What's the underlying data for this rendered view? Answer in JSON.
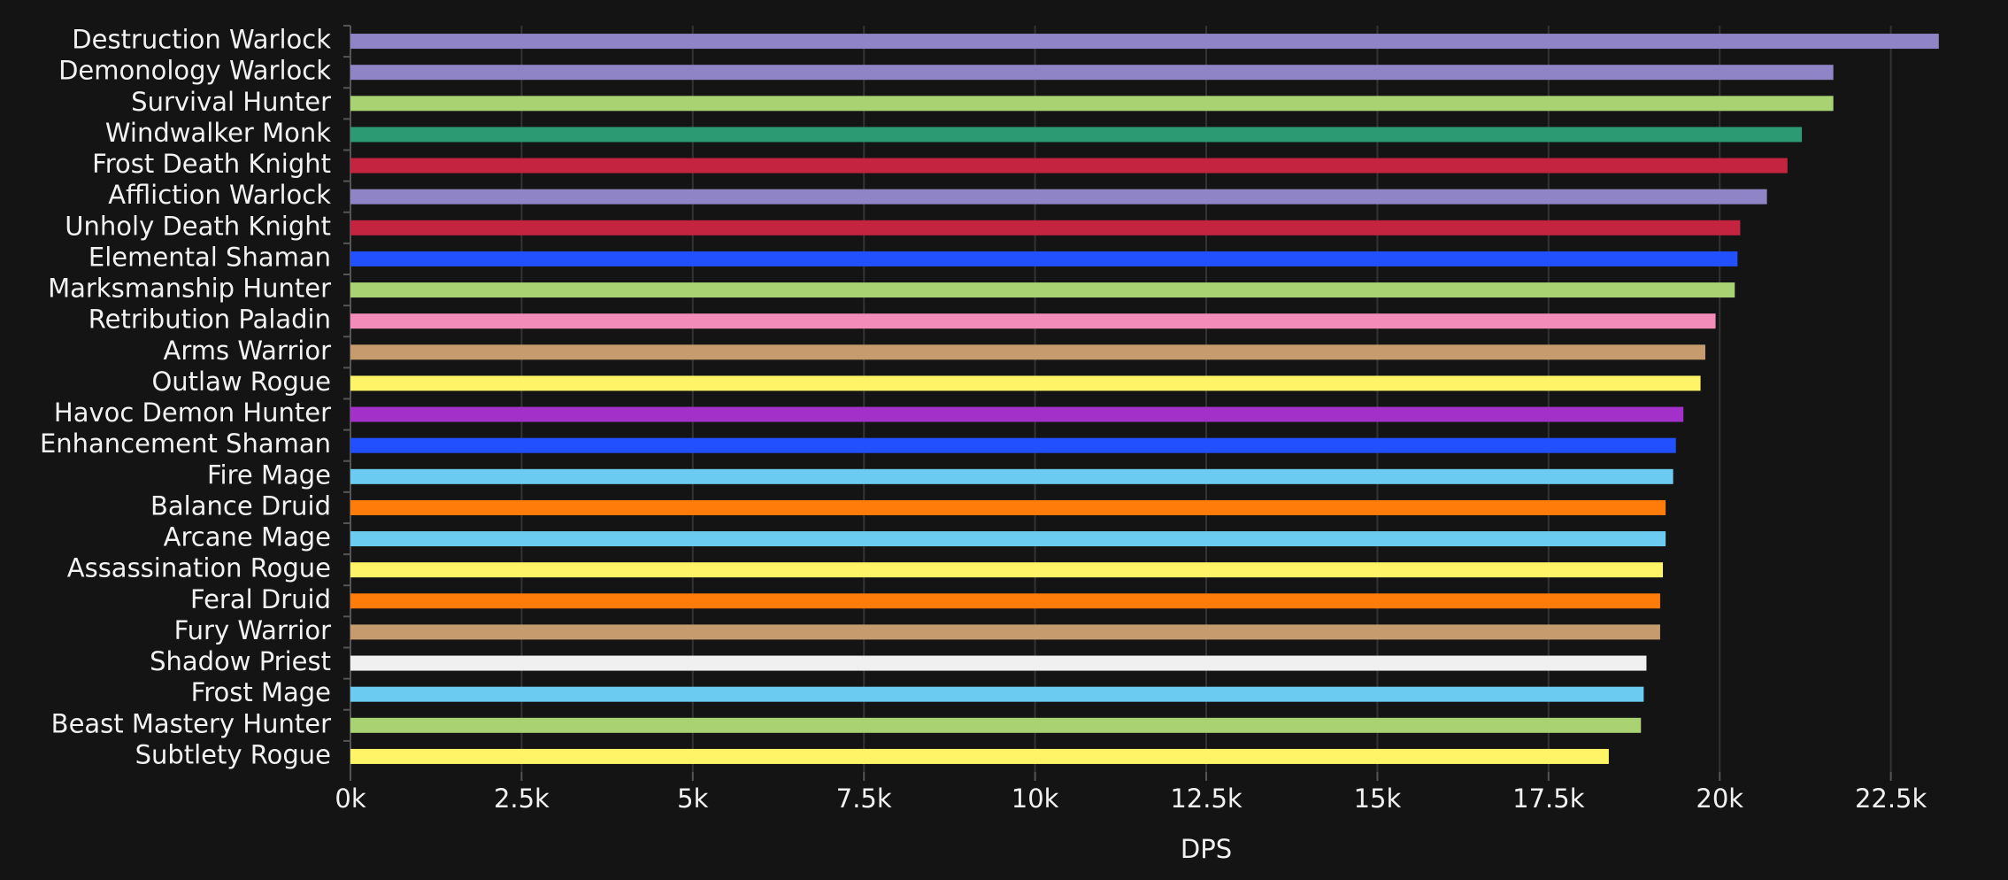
{
  "chart_data": {
    "type": "barh",
    "x_label": "DPS",
    "categories": [
      "Destruction Warlock",
      "Demonology Warlock",
      "Survival Hunter",
      "Windwalker Monk",
      "Frost Death Knight",
      "Affliction Warlock",
      "Unholy Death Knight",
      "Elemental Shaman",
      "Marksmanship Hunter",
      "Retribution Paladin",
      "Arms Warrior",
      "Outlaw Rogue",
      "Havoc Demon Hunter",
      "Enhancement Shaman",
      "Fire Mage",
      "Balance Druid",
      "Arcane Mage",
      "Assassination Rogue",
      "Feral Druid",
      "Fury Warrior",
      "Shadow Priest",
      "Frost Mage",
      "Beast Mastery Hunter",
      "Subtlety Rogue"
    ],
    "values": [
      23200,
      21660,
      21660,
      21200,
      20990,
      20690,
      20300,
      20260,
      20220,
      19940,
      19790,
      19720,
      19470,
      19360,
      19320,
      19210,
      19210,
      19170,
      19130,
      19130,
      18930,
      18890,
      18850,
      18380
    ],
    "colors": [
      "#8f84c6",
      "#8f84c6",
      "#a9d273",
      "#2c9a72",
      "#c52440",
      "#8f84c6",
      "#c52440",
      "#2250ff",
      "#a9d273",
      "#f48cba",
      "#c69b6d",
      "#fff468",
      "#a330c9",
      "#2250ff",
      "#6ccbf0",
      "#ff7c0a",
      "#6ccbf0",
      "#fff468",
      "#ff7c0a",
      "#c69b6d",
      "#f0f0f0",
      "#6ccbf0",
      "#a9d273",
      "#fff468"
    ],
    "xlim": [
      0,
      23500
    ],
    "xticks": [
      {
        "value": 0,
        "label": "0k"
      },
      {
        "value": 2500,
        "label": "2.5k"
      },
      {
        "value": 5000,
        "label": "5k"
      },
      {
        "value": 7500,
        "label": "7.5k"
      },
      {
        "value": 10000,
        "label": "10k"
      },
      {
        "value": 12500,
        "label": "12.5k"
      },
      {
        "value": 15000,
        "label": "15k"
      },
      {
        "value": 17500,
        "label": "17.5k"
      },
      {
        "value": 20000,
        "label": "20k"
      },
      {
        "value": 22500,
        "label": "22.5k"
      }
    ],
    "grid": true
  }
}
